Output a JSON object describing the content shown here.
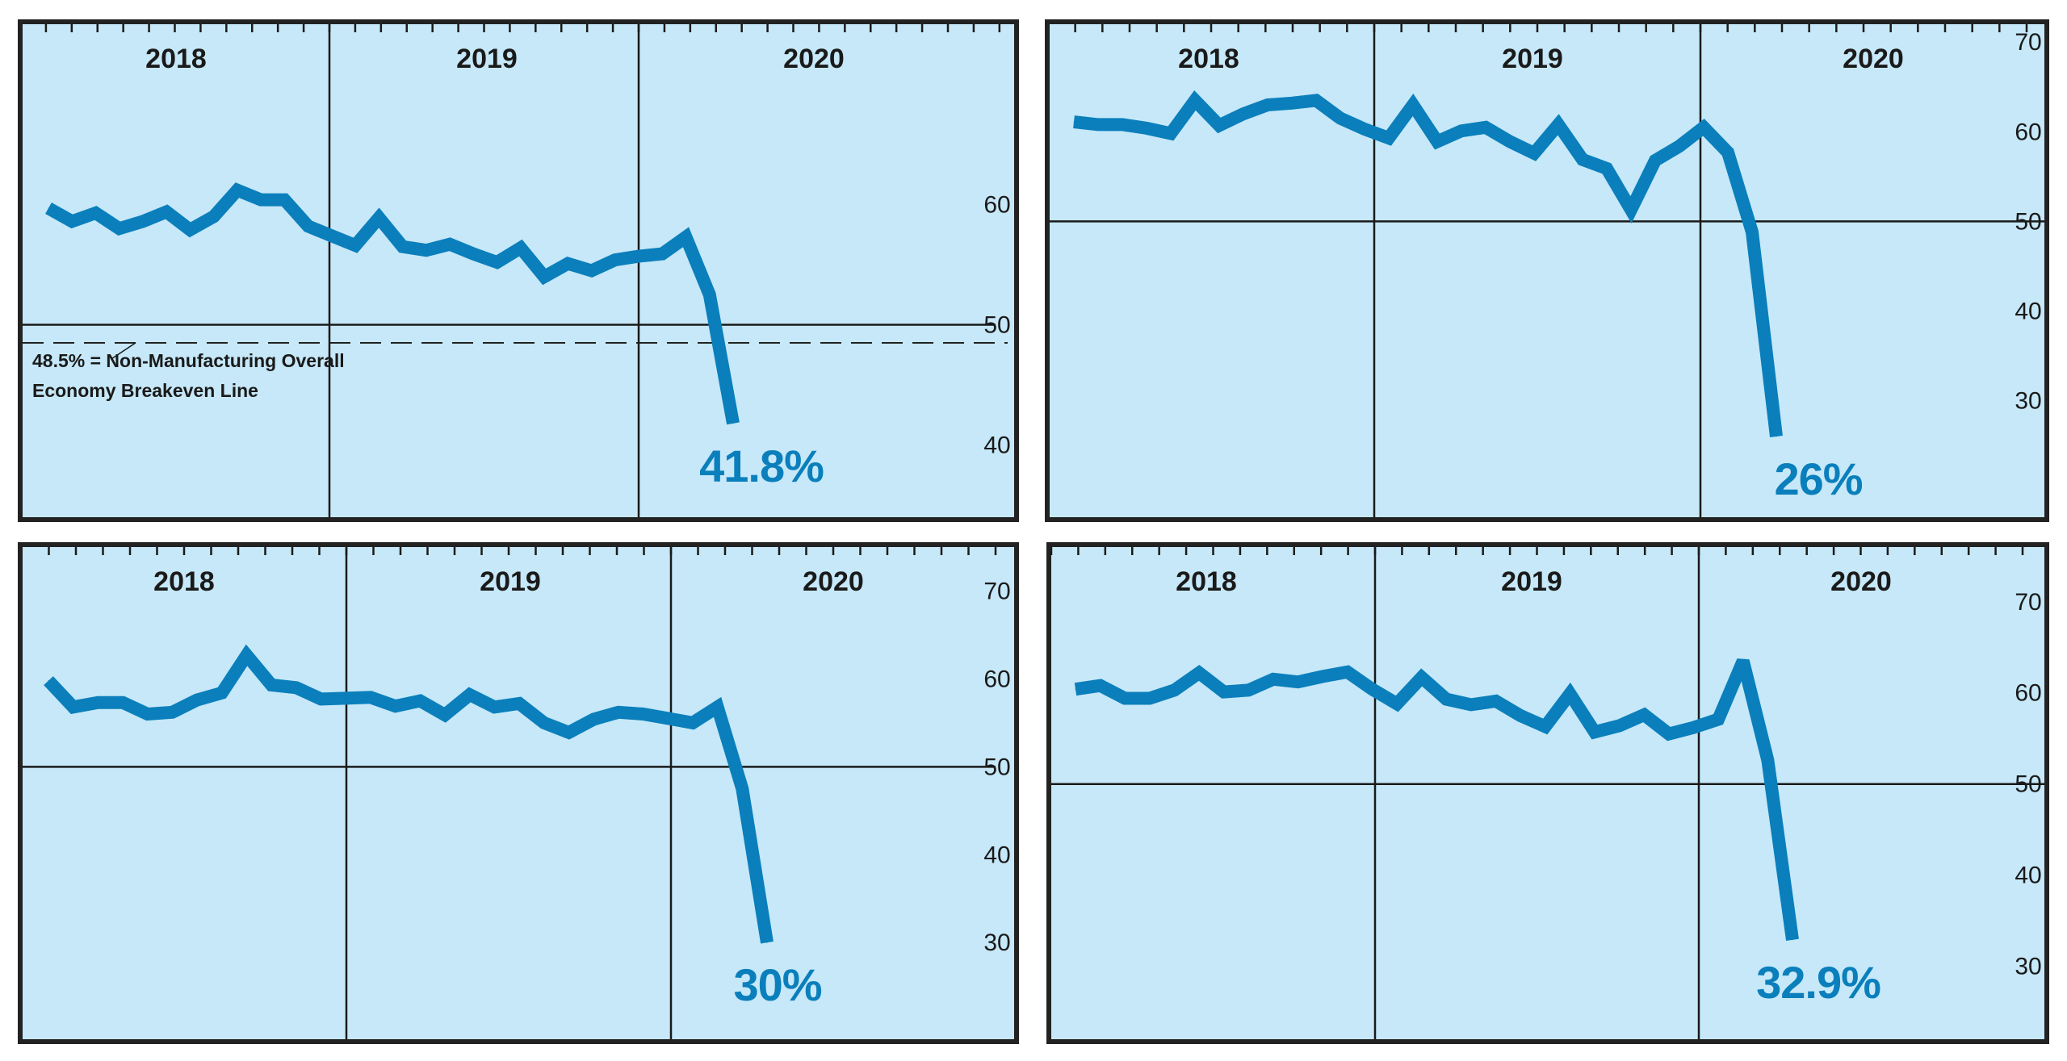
{
  "colors": {
    "line": "#0a7fbc",
    "panel_bg": "#c6e8f8",
    "frame": "#222222",
    "axis": "#1a1a1a"
  },
  "chart_data": [
    {
      "type": "line",
      "x_labels": [
        "2018",
        "2019",
        "2020"
      ],
      "ylim": [
        34,
        75
      ],
      "yticks": [
        40,
        50,
        60
      ],
      "reference_line": 50,
      "breakeven": {
        "value": 48.5,
        "label_line1": "48.5% = Non-Manufacturing Overall",
        "label_line2": "Economy Breakeven Line"
      },
      "series": [
        {
          "values": [
            59.7,
            58.6,
            59.3,
            58.0,
            58.6,
            59.4,
            57.9,
            59.0,
            61.2,
            60.4,
            60.4,
            58.2,
            57.4,
            56.6,
            58.9,
            56.5,
            56.2,
            56.7,
            55.9,
            55.2,
            56.4,
            54.0,
            55.1,
            54.5,
            55.4,
            55.7,
            55.9,
            57.3,
            52.5,
            41.8
          ]
        }
      ],
      "end_label": "41.8%"
    },
    {
      "type": "line",
      "x_labels": [
        "2018",
        "2019",
        "2020"
      ],
      "ylim": [
        17,
        72
      ],
      "yticks": [
        30,
        40,
        50,
        60,
        70
      ],
      "reference_line": 50,
      "series": [
        {
          "values": [
            61.1,
            60.8,
            60.8,
            60.4,
            59.8,
            63.5,
            60.7,
            62.0,
            63.0,
            63.2,
            63.5,
            61.5,
            60.3,
            59.3,
            63.0,
            58.9,
            60.1,
            60.5,
            58.9,
            57.6,
            60.8,
            56.9,
            55.9,
            51.3,
            56.8,
            58.4,
            60.5,
            57.7,
            48.8,
            26.0
          ]
        }
      ],
      "end_label": "26%"
    },
    {
      "type": "line",
      "x_labels": [
        "2018",
        "2019",
        "2020"
      ],
      "ylim": [
        19,
        75
      ],
      "yticks": [
        30,
        40,
        50,
        60,
        70
      ],
      "reference_line": 50,
      "series": [
        {
          "values": [
            59.8,
            56.8,
            57.3,
            57.3,
            56.0,
            56.2,
            57.6,
            58.4,
            62.7,
            59.3,
            59.0,
            57.7,
            57.8,
            57.9,
            56.9,
            57.5,
            55.9,
            58.2,
            56.8,
            57.2,
            55.0,
            53.9,
            55.4,
            56.2,
            56.0,
            55.5,
            55.0,
            56.8,
            47.5,
            30.0
          ]
        }
      ],
      "end_label": "30%"
    },
    {
      "type": "line",
      "x_labels": [
        "2018",
        "2019",
        "2020"
      ],
      "ylim": [
        22,
        76
      ],
      "yticks": [
        30,
        40,
        50,
        60,
        70
      ],
      "reference_line": 50,
      "series": [
        {
          "values": [
            60.4,
            60.8,
            59.4,
            59.4,
            60.3,
            62.2,
            60.1,
            60.3,
            61.5,
            61.2,
            61.8,
            62.3,
            60.4,
            58.8,
            61.7,
            59.3,
            58.7,
            59.1,
            57.5,
            56.3,
            59.9,
            55.7,
            56.4,
            57.6,
            55.5,
            56.2,
            57.1,
            63.5,
            52.6,
            32.9
          ]
        }
      ],
      "end_label": "32.9%"
    }
  ]
}
